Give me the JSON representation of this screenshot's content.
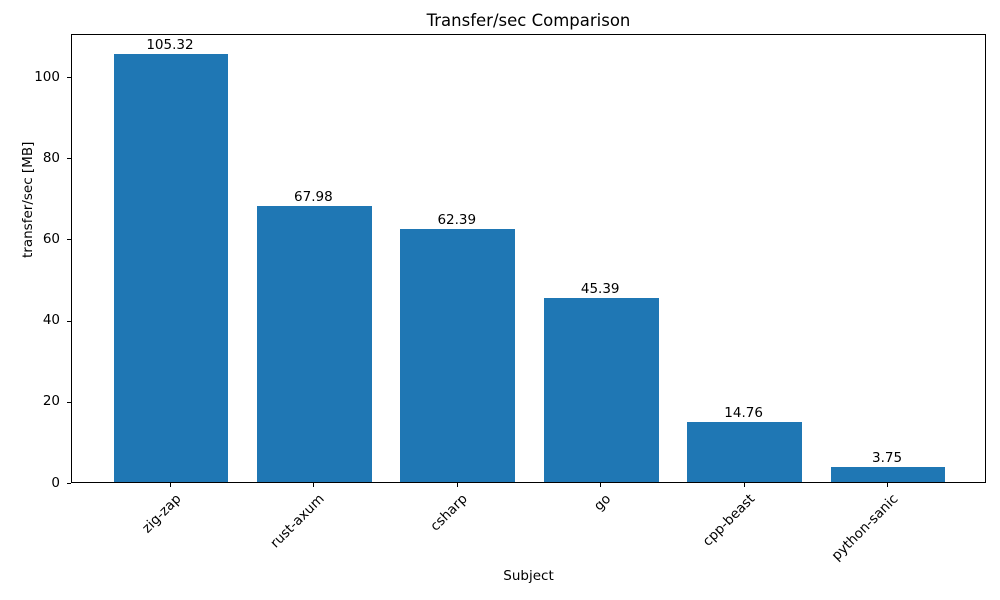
{
  "chart_data": {
    "type": "bar",
    "title": "Transfer/sec Comparison",
    "xlabel": "Subject",
    "ylabel": "transfer/sec [MB]",
    "categories": [
      "zig-zap",
      "rust-axum",
      "csharp",
      "go",
      "cpp-beast",
      "python-sanic"
    ],
    "values": [
      105.32,
      67.98,
      62.39,
      45.39,
      14.76,
      3.75
    ],
    "value_labels": [
      "105.32",
      "67.98",
      "62.39",
      "45.39",
      "14.76",
      "3.75"
    ],
    "yticks": [
      0,
      20,
      40,
      60,
      80,
      100
    ],
    "ylim": [
      0,
      110.6
    ],
    "bar_color": "#1f77b4",
    "axis_color": "#000000",
    "grid": false,
    "legend": "none",
    "x_tick_rotation_deg": 45
  }
}
